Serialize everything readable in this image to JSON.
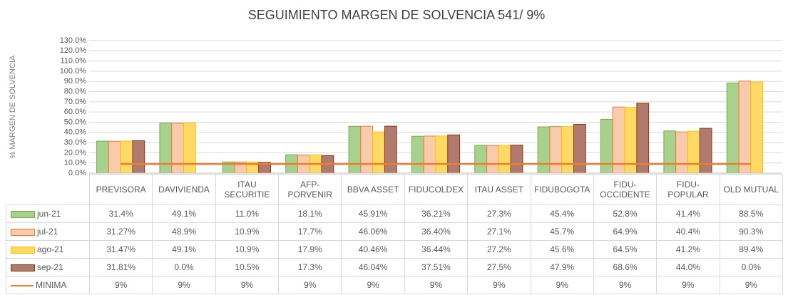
{
  "chart_data": {
    "type": "bar",
    "title": "SEGUIMIENTO MARGEN DE SOLVENCIA 541/ 9%",
    "y_label": "% MARGEN DE SOLVENCIA",
    "categories": [
      "PREVISORA",
      "DAVIVIENDA",
      "ITAU SECURITIE",
      "AFP-PORVENIR",
      "BBVA ASSET",
      "FIDUCOLDEX",
      "ITAU ASSET",
      "FIDUBOGOTA",
      "FIDU-OCCIDENTE",
      "FIDU-POPULAR",
      "OLD MUTUAL"
    ],
    "series": [
      {
        "name": "jun-21",
        "color": "#a9d18e",
        "stroke": "#70ad47",
        "values": [
          31.4,
          49.1,
          11.0,
          18.1,
          45.91,
          36.21,
          27.3,
          45.4,
          52.8,
          41.4,
          88.5
        ],
        "value_labels": [
          "31.4%",
          "49.1%",
          "11.0%",
          "18.1%",
          "45.91%",
          "36.21%",
          "27.3%",
          "45.4%",
          "52.8%",
          "41.4%",
          "88.5%"
        ]
      },
      {
        "name": "jul-21",
        "color": "#f8cbad",
        "stroke": "#ed7d31",
        "values": [
          31.27,
          48.9,
          10.9,
          17.7,
          46.06,
          36.4,
          27.1,
          45.7,
          64.9,
          40.4,
          90.3
        ],
        "value_labels": [
          "31.27%",
          "48.9%",
          "10.9%",
          "17.7%",
          "46.06%",
          "36.40%",
          "27.1%",
          "45.7%",
          "64.9%",
          "40.4%",
          "90.3%"
        ]
      },
      {
        "name": "ago-21",
        "color": "#ffd966",
        "stroke": "#ffc000",
        "values": [
          31.47,
          49.1,
          10.9,
          17.9,
          40.46,
          36.44,
          27.2,
          45.6,
          64.5,
          41.2,
          89.4
        ],
        "value_labels": [
          "31.47%",
          "49.1%",
          "10.9%",
          "17.9%",
          "40.46%",
          "36.44%",
          "27.2%",
          "45.6%",
          "64.5%",
          "41.2%",
          "89.4%"
        ]
      },
      {
        "name": "sep-21",
        "color": "#b07a6e",
        "stroke": "#843c0c",
        "values": [
          31.81,
          0.0,
          10.5,
          17.3,
          46.04,
          37.51,
          27.5,
          47.9,
          68.6,
          44.0,
          0.0
        ],
        "value_labels": [
          "31.81%",
          "0.0%",
          "10.5%",
          "17.3%",
          "46.04%",
          "37.51%",
          "27.5%",
          "47.9%",
          "68.6%",
          "44.0%",
          "0.0%"
        ]
      },
      {
        "name": "MINIMA",
        "type": "line",
        "color": "#ed7d31",
        "values": [
          9,
          9,
          9,
          9,
          9,
          9,
          9,
          9,
          9,
          9,
          9
        ],
        "value_labels": [
          "9%",
          "9%",
          "9%",
          "9%",
          "9%",
          "9%",
          "9%",
          "9%",
          "9%",
          "9%",
          "9%"
        ]
      }
    ],
    "ylim": [
      0,
      130
    ],
    "yticks": [
      {
        "value": 0,
        "label": "0.0%"
      },
      {
        "value": 10,
        "label": "10.0%"
      },
      {
        "value": 20,
        "label": "20.0%"
      },
      {
        "value": 30,
        "label": "30.0%"
      },
      {
        "value": 40,
        "label": "40.0%"
      },
      {
        "value": 50,
        "label": "50.0%"
      },
      {
        "value": 60,
        "label": "60.0%"
      },
      {
        "value": 70,
        "label": "70.0%"
      },
      {
        "value": 80,
        "label": "80.0%"
      },
      {
        "value": 90,
        "label": "90.0%"
      },
      {
        "value": 100,
        "label": "100.0%"
      },
      {
        "value": 110,
        "label": "110.0%"
      },
      {
        "value": 120,
        "label": "120.0%"
      },
      {
        "value": 130,
        "label": "130.0%"
      }
    ],
    "grid": true
  }
}
